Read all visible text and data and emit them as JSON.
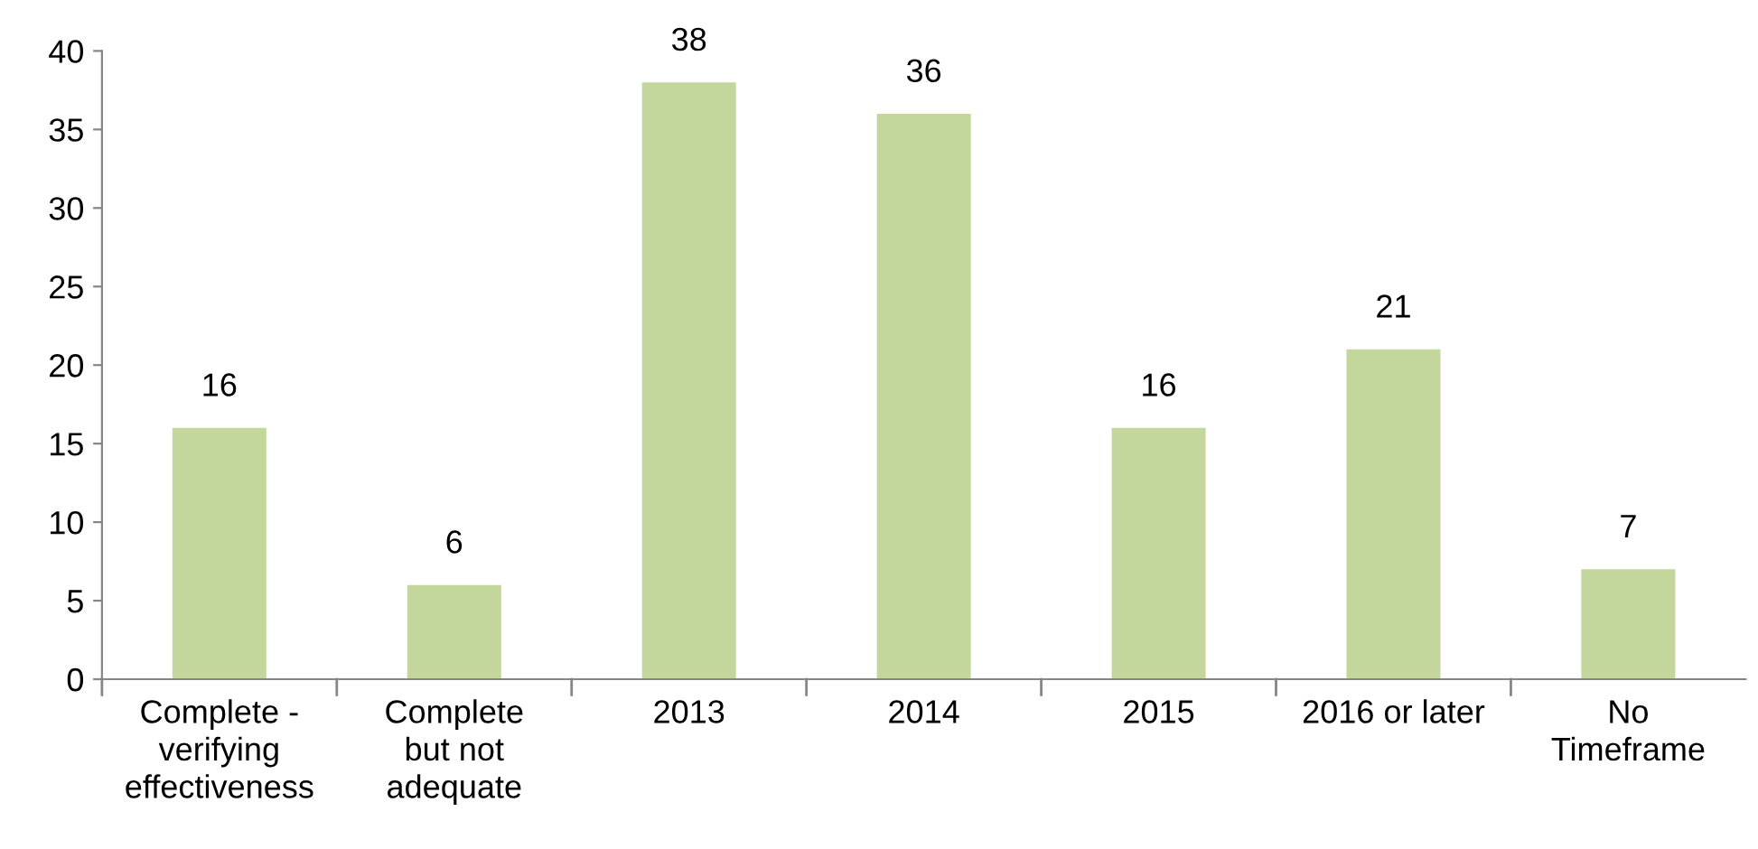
{
  "chart_data": {
    "type": "bar",
    "categories": [
      "Complete -\nverifying\neffectiveness",
      "Complete\nbut not\nadequate",
      "2013",
      "2014",
      "2015",
      "2016 or later",
      "No\nTimeframe"
    ],
    "values": [
      16,
      6,
      38,
      36,
      16,
      21,
      7
    ],
    "color": "#c3d69b",
    "ylim": [
      0,
      40
    ],
    "yticks": [
      0,
      5,
      10,
      15,
      20,
      25,
      30,
      35,
      40
    ],
    "data_labels": true,
    "grid": false
  }
}
